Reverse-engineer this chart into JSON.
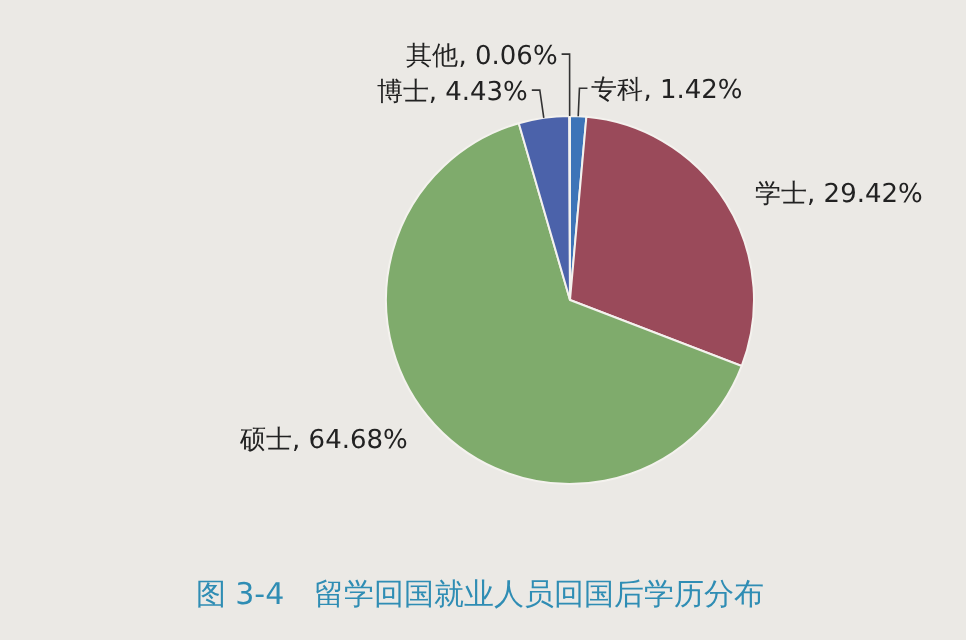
{
  "chart_data": {
    "type": "pie",
    "title": "图 3-4　留学回国就业人员回国后学历分布",
    "categories": [
      "专科",
      "学士",
      "硕士",
      "博士",
      "其他"
    ],
    "values": [
      1.42,
      29.42,
      64.68,
      4.43,
      0.06
    ],
    "colors": [
      "#3d74b8",
      "#9a4a5a",
      "#7fab6c",
      "#4b62aa",
      "#8a8fa0"
    ],
    "value_labels": [
      "1.42%",
      "29.42%",
      "64.68%",
      "4.43%",
      "0.06%"
    ]
  }
}
